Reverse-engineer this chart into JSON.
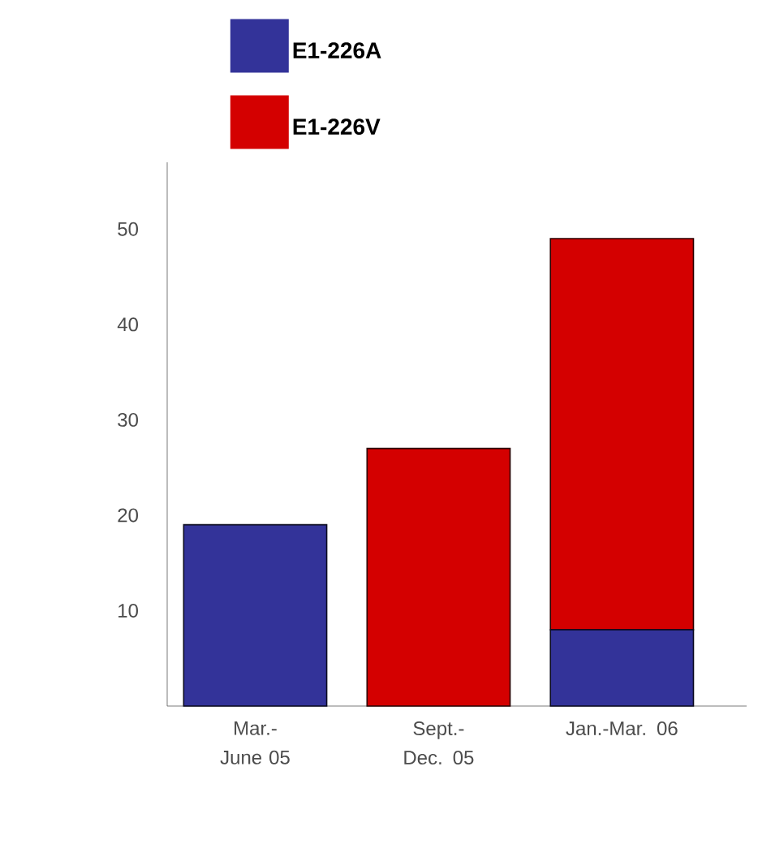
{
  "chart_data": {
    "type": "bar",
    "stacked": true,
    "categories": [
      "Mar.-June 05",
      "Sept.-Dec. 05",
      "Jan.-Mar. 06"
    ],
    "series": [
      {
        "name": "E1-226A",
        "color": "#333399",
        "values": [
          19,
          0,
          8
        ]
      },
      {
        "name": "E1-226V",
        "color": "#d40000",
        "values": [
          0,
          27,
          41
        ]
      }
    ],
    "ylim": [
      0,
      57
    ],
    "yticks": [
      10,
      20,
      30,
      40,
      50
    ],
    "legend": "top left",
    "grid": false
  }
}
